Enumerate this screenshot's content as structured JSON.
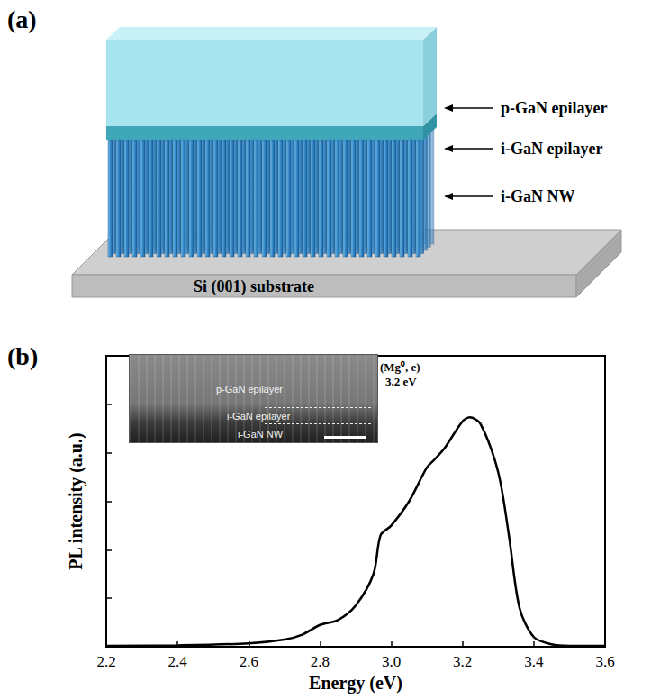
{
  "panel_labels": [
    "(a)",
    "(b)"
  ],
  "diagram": {
    "layers": [
      "p-GaN epilayer",
      "i-GaN epilayer",
      "i-GaN NW"
    ],
    "substrate": "Si (001) substrate"
  },
  "chart_data": {
    "type": "line",
    "x_label": "Energy (eV)",
    "y_label": "PL intensity (a.u.)",
    "annotations": [
      "(Mg⁰, e)",
      "3.2 eV"
    ],
    "inset_labels": [
      "p-GaN epilayer",
      "i-GaN epilayer",
      "i-GaN NW"
    ],
    "x": [
      2.2,
      2.4,
      2.6,
      2.7,
      2.75,
      2.8,
      2.85,
      2.9,
      2.95,
      2.97,
      3.0,
      3.05,
      3.1,
      3.12,
      3.15,
      3.2,
      3.22,
      3.25,
      3.3,
      3.33,
      3.36,
      3.4,
      3.45,
      3.5,
      3.6
    ],
    "values": [
      0.02,
      0.03,
      0.07,
      0.15,
      0.25,
      0.45,
      0.55,
      0.85,
      1.5,
      2.3,
      2.5,
      3.0,
      3.7,
      3.85,
      4.1,
      4.65,
      4.73,
      4.6,
      3.6,
      2.3,
      0.8,
      0.2,
      0.05,
      0.02,
      0.02
    ],
    "color": "#000000",
    "xlim": [
      2.2,
      3.6
    ],
    "xticks": [
      2.2,
      2.4,
      2.6,
      2.8,
      {
        "value": 3,
        "label": "3.0"
      },
      3.2,
      3.4,
      3.6
    ],
    "ylim": [
      0,
      6
    ],
    "yticks": [
      0,
      1,
      2,
      3,
      4,
      5,
      6
    ],
    "tick_labels": "x",
    "grid": false
  }
}
